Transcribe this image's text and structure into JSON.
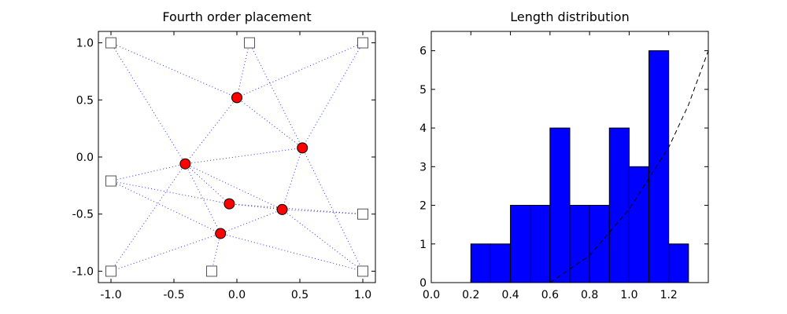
{
  "chart_data": [
    {
      "type": "scatter",
      "title": "Fourth order placement",
      "xlabel": "",
      "ylabel": "",
      "xlim": [
        -1.1,
        1.1
      ],
      "ylim": [
        -1.1,
        1.1
      ],
      "x_ticks": [
        -1.0,
        -0.5,
        0.0,
        0.5,
        1.0
      ],
      "x_tick_labels": [
        "-1.0",
        "-0.5",
        "0.0",
        "0.5",
        "1.0"
      ],
      "y_ticks": [
        1.0,
        0.5,
        0.0,
        -0.5,
        -1.0
      ],
      "y_tick_labels": [
        "1.0",
        "0.5",
        "0.0",
        "-0.5",
        "-1.0"
      ],
      "grid": false,
      "fixed_points": [
        [
          -1.0,
          1.0
        ],
        [
          0.1,
          1.0
        ],
        [
          1.0,
          1.0
        ],
        [
          -1.0,
          -0.21
        ],
        [
          1.0,
          -0.5
        ],
        [
          -1.0,
          -1.0
        ],
        [
          -0.2,
          -1.0
        ],
        [
          1.0,
          -1.0
        ]
      ],
      "placed_points": [
        [
          0.0,
          0.52
        ],
        [
          0.52,
          0.08
        ],
        [
          -0.41,
          -0.06
        ],
        [
          -0.06,
          -0.41
        ],
        [
          0.36,
          -0.46
        ],
        [
          -0.13,
          -0.67
        ]
      ],
      "edges": [
        [
          [
            -1.0,
            1.0
          ],
          [
            0.0,
            0.52
          ]
        ],
        [
          [
            -1.0,
            1.0
          ],
          [
            -0.41,
            -0.06
          ]
        ],
        [
          [
            0.1,
            1.0
          ],
          [
            0.0,
            0.52
          ]
        ],
        [
          [
            0.1,
            1.0
          ],
          [
            0.52,
            0.08
          ]
        ],
        [
          [
            1.0,
            1.0
          ],
          [
            0.0,
            0.52
          ]
        ],
        [
          [
            1.0,
            1.0
          ],
          [
            0.52,
            0.08
          ]
        ],
        [
          [
            0.0,
            0.52
          ],
          [
            0.52,
            0.08
          ]
        ],
        [
          [
            0.0,
            0.52
          ],
          [
            -0.41,
            -0.06
          ]
        ],
        [
          [
            -0.41,
            -0.06
          ],
          [
            0.52,
            0.08
          ]
        ],
        [
          [
            -0.41,
            -0.06
          ],
          [
            -1.0,
            -0.21
          ]
        ],
        [
          [
            -0.41,
            -0.06
          ],
          [
            -0.06,
            -0.41
          ]
        ],
        [
          [
            -0.41,
            -0.06
          ],
          [
            0.36,
            -0.46
          ]
        ],
        [
          [
            -0.41,
            -0.06
          ],
          [
            -1.0,
            -1.0
          ]
        ],
        [
          [
            -0.41,
            -0.06
          ],
          [
            -0.13,
            -0.67
          ]
        ],
        [
          [
            0.52,
            0.08
          ],
          [
            0.36,
            -0.46
          ]
        ],
        [
          [
            0.52,
            0.08
          ],
          [
            1.0,
            -1.0
          ]
        ],
        [
          [
            -1.0,
            -0.21
          ],
          [
            -0.06,
            -0.41
          ]
        ],
        [
          [
            -1.0,
            -0.21
          ],
          [
            -0.13,
            -0.67
          ]
        ],
        [
          [
            -0.06,
            -0.41
          ],
          [
            0.36,
            -0.46
          ]
        ],
        [
          [
            0.36,
            -0.46
          ],
          [
            1.0,
            -0.5
          ]
        ],
        [
          [
            -0.06,
            -0.41
          ],
          [
            1.0,
            -0.5
          ]
        ],
        [
          [
            0.36,
            -0.46
          ],
          [
            -0.13,
            -0.67
          ]
        ],
        [
          [
            0.36,
            -0.46
          ],
          [
            1.0,
            -1.0
          ]
        ],
        [
          [
            -0.13,
            -0.67
          ],
          [
            -0.2,
            -1.0
          ]
        ],
        [
          [
            -0.13,
            -0.67
          ],
          [
            -1.0,
            -1.0
          ]
        ],
        [
          [
            -0.13,
            -0.67
          ],
          [
            1.0,
            -1.0
          ]
        ]
      ],
      "colors": {
        "placed_fill": "#ff0000",
        "fixed_fill": "#ffffff",
        "fixed_stroke": "#555555",
        "edge": "#0000ff"
      }
    },
    {
      "type": "bar",
      "title": "Length distribution",
      "xlabel": "",
      "ylabel": "",
      "xlim": [
        0.0,
        1.4
      ],
      "ylim": [
        0,
        6.5
      ],
      "x_ticks": [
        0.0,
        0.2,
        0.4,
        0.6,
        0.8,
        1.0,
        1.2
      ],
      "x_tick_labels": [
        "0.0",
        "0.2",
        "0.4",
        "0.6",
        "0.8",
        "1.0",
        "1.2"
      ],
      "y_ticks": [
        0,
        1,
        2,
        3,
        4,
        5,
        6
      ],
      "y_tick_labels": [
        "0",
        "1",
        "2",
        "3",
        "4",
        "5",
        "6"
      ],
      "bin_width": 0.1,
      "bin_starts": [
        0.0,
        0.1,
        0.2,
        0.3,
        0.4,
        0.5,
        0.6,
        0.7,
        0.8,
        0.9,
        1.0,
        1.1,
        1.2
      ],
      "values": [
        0,
        0,
        1,
        1,
        2,
        2,
        4,
        2,
        2,
        4,
        3,
        6,
        1
      ],
      "grid": false,
      "reference_curve": [
        [
          0.6,
          0.0
        ],
        [
          0.8,
          0.7
        ],
        [
          1.0,
          1.9
        ],
        [
          1.2,
          3.5
        ],
        [
          1.3,
          4.6
        ],
        [
          1.4,
          6.0
        ]
      ],
      "colors": {
        "bar_fill": "#0000ff",
        "bar_stroke": "#000000",
        "curve": "#000000"
      }
    }
  ]
}
